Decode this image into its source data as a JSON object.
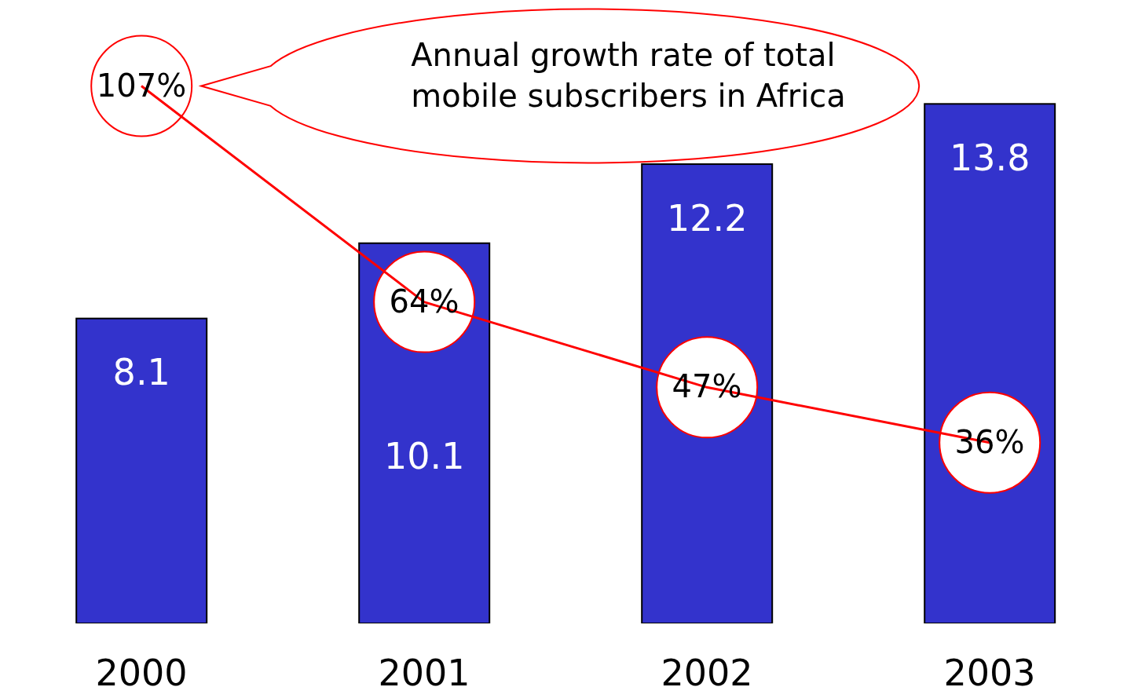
{
  "chart_data": {
    "type": "bar",
    "categories": [
      "2000",
      "2001",
      "2002",
      "2003"
    ],
    "series": [
      {
        "type": "bar",
        "color": "#3333cc",
        "values": [
          8.1,
          10.1,
          12.2,
          13.8
        ],
        "value_labels": [
          "8.1",
          "10.1",
          "12.2",
          "13.8"
        ]
      },
      {
        "type": "line",
        "axis": "y2",
        "color": "#ff0000",
        "values": [
          107,
          64,
          47,
          36
        ],
        "value_labels": [
          "107%",
          "64%",
          "47%",
          "36%"
        ]
      }
    ],
    "annotations": [
      "Annual growth rate of total mobile subscribers in Africa"
    ]
  }
}
